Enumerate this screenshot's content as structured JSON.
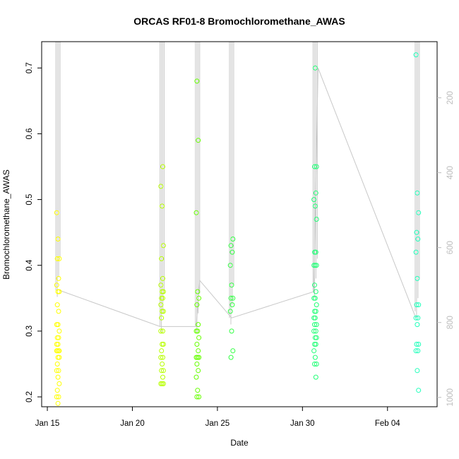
{
  "chart_data": {
    "type": "scatter",
    "title": "ORCAS RF01-8 Bromochloromethane_AWAS",
    "xlabel": "Date",
    "ylabel": "Bromochloromethane_AWAS",
    "xlim": [
      "2016-01-14T16:00",
      "2016-02-06T22:00"
    ],
    "ylim": [
      0.185,
      0.74
    ],
    "x_ticks": [
      "2016-01-15",
      "2016-01-20",
      "2016-01-25",
      "2016-01-30",
      "2016-02-04"
    ],
    "x_tick_labels": [
      "Jan 15",
      "Jan 20",
      "Jan 25",
      "Jan 30",
      "Feb 04"
    ],
    "y_ticks": [
      0.2,
      0.3,
      0.4,
      0.5,
      0.6,
      0.7
    ],
    "y_tick_labels": [
      "0.2",
      "0.3",
      "0.4",
      "0.5",
      "0.6",
      "0.7"
    ],
    "right_axis": {
      "ticks": [
        200,
        400,
        600,
        800,
        1000
      ],
      "tick_labels": [
        "200",
        "400",
        "600",
        "800",
        "1000"
      ],
      "reversed": true,
      "range": [
        50,
        1025
      ],
      "color": "#bdbdbd"
    },
    "marker": "open-circle",
    "background_trace_color": "#c8c8c8",
    "grid": false,
    "series": [
      {
        "color": "#ffff00",
        "x": "2016-01-15T15:00",
        "values": [
          0.48,
          0.44,
          0.41,
          0.41,
          0.38,
          0.37,
          0.36,
          0.36,
          0.34,
          0.33,
          0.31,
          0.31,
          0.3,
          0.29,
          0.29,
          0.28,
          0.28,
          0.27,
          0.27,
          0.27,
          0.27,
          0.26,
          0.26,
          0.25,
          0.24,
          0.24,
          0.23,
          0.22,
          0.21,
          0.2,
          0.2,
          0.19
        ]
      },
      {
        "color": "#b7ff00",
        "x": "2016-01-21T18:00",
        "values": [
          0.55,
          0.52,
          0.49,
          0.43,
          0.41,
          0.38,
          0.37,
          0.36,
          0.36,
          0.35,
          0.35,
          0.34,
          0.33,
          0.33,
          0.32,
          0.3,
          0.3,
          0.28,
          0.28,
          0.27,
          0.26,
          0.26,
          0.25,
          0.24,
          0.24,
          0.23,
          0.22,
          0.22,
          0.22
        ]
      },
      {
        "color": "#66ff00",
        "x": "2016-01-23T20:00",
        "values": [
          0.68,
          0.59,
          0.48,
          0.36,
          0.35,
          0.34,
          0.31,
          0.3,
          0.3,
          0.29,
          0.28,
          0.27,
          0.26,
          0.26,
          0.26,
          0.25,
          0.24,
          0.23,
          0.21,
          0.2,
          0.2
        ]
      },
      {
        "color": "#33ff44",
        "x": "2016-01-25T20:00",
        "values": [
          0.44,
          0.43,
          0.42,
          0.4,
          0.37,
          0.35,
          0.35,
          0.34,
          0.33,
          0.3,
          0.27,
          0.26
        ]
      },
      {
        "color": "#22ff77",
        "x": "2016-01-30T18:00",
        "values": [
          0.7,
          0.55,
          0.55,
          0.51,
          0.5,
          0.49,
          0.47,
          0.42,
          0.42,
          0.4,
          0.4,
          0.4,
          0.37,
          0.36,
          0.35,
          0.35,
          0.34,
          0.33,
          0.33,
          0.32,
          0.32,
          0.31,
          0.31,
          0.3,
          0.3,
          0.29,
          0.29,
          0.28,
          0.28,
          0.27,
          0.26,
          0.25,
          0.25,
          0.23
        ]
      },
      {
        "color": "#22ffbb",
        "x": "2016-02-05T18:00",
        "values": [
          0.72,
          0.51,
          0.48,
          0.45,
          0.44,
          0.42,
          0.38,
          0.34,
          0.34,
          0.32,
          0.32,
          0.31,
          0.28,
          0.28,
          0.27,
          0.27,
          0.24,
          0.21
        ]
      }
    ]
  }
}
